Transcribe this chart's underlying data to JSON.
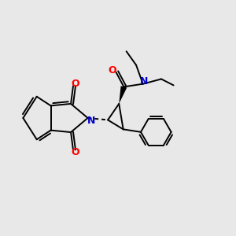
{
  "background_color": "#e8e8e8",
  "bond_color": "#000000",
  "N_color": "#0000cc",
  "O_color": "#ff0000",
  "line_width": 1.4,
  "fig_width": 3.0,
  "fig_height": 3.0,
  "dpi": 100,
  "font_size": 9.0,
  "xlim": [
    -0.1,
    1.1
  ],
  "ylim": [
    -0.1,
    1.1
  ]
}
